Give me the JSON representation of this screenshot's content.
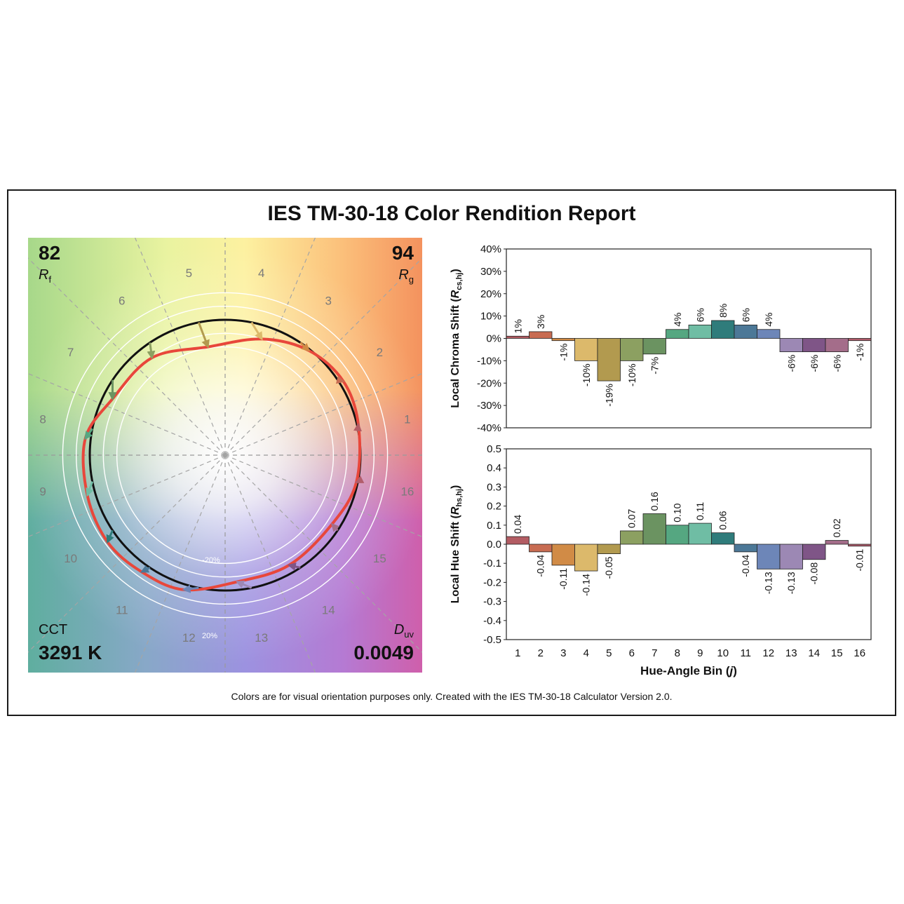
{
  "report": {
    "title": "IES TM-30-18 Color Rendition Report",
    "footer": "Colors are for visual orientation purposes only. Created with the IES TM-30-18 Calculator Version 2.0."
  },
  "metrics": {
    "rf_value": "82",
    "rf_symbol": "R",
    "rf_sub": "f",
    "rg_value": "94",
    "rg_symbol": "R",
    "rg_sub": "g",
    "cct_label": "CCT",
    "cct_value": "3291 K",
    "duv_symbol": "D",
    "duv_sub": "uv",
    "duv_value": "0.0049"
  },
  "vector_graphic": {
    "bin_labels": [
      "1",
      "2",
      "3",
      "4",
      "5",
      "6",
      "7",
      "8",
      "9",
      "10",
      "11",
      "12",
      "13",
      "14",
      "15",
      "16"
    ],
    "ring_label_inner": "-20%",
    "ring_label_outer": "20%",
    "bin_colors": [
      "#b35c63",
      "#c86c52",
      "#d18b46",
      "#dcb96b",
      "#b29a4f",
      "#8ca061",
      "#6b9361",
      "#55a781",
      "#6fbda4",
      "#2f7c7b",
      "#4c7897",
      "#6d86b8",
      "#9c88b4",
      "#7f5587",
      "#a46d8a",
      "#b25d6c"
    ],
    "reference_color": "#111111",
    "test_color": "#e8473b"
  },
  "chart_data": [
    {
      "type": "bar",
      "title": "",
      "xlabel": "",
      "ylabel": "Local Chroma Shift (R",
      "ylabel_sub": "cs,hj",
      "ylabel_end": ")",
      "categories": [
        "1",
        "2",
        "3",
        "4",
        "5",
        "6",
        "7",
        "8",
        "9",
        "10",
        "11",
        "12",
        "13",
        "14",
        "15",
        "16"
      ],
      "values": [
        0.01,
        0.03,
        -0.01,
        -0.1,
        -0.19,
        -0.1,
        -0.07,
        0.04,
        0.06,
        0.08,
        0.06,
        0.04,
        -0.06,
        -0.06,
        -0.06,
        -0.01
      ],
      "data_labels": [
        "1%",
        "3%",
        "-1%",
        "-10%",
        "-19%",
        "-10%",
        "-7%",
        "4%",
        "6%",
        "8%",
        "6%",
        "4%",
        "-6%",
        "-6%",
        "-6%",
        "-1%"
      ],
      "ylim": [
        -0.4,
        0.4
      ],
      "yticks": [
        0.4,
        0.3,
        0.2,
        0.1,
        0,
        -0.1,
        -0.2,
        -0.3,
        -0.4
      ],
      "ytick_labels": [
        "40%",
        "30%",
        "20%",
        "10%",
        "0%",
        "-10%",
        "-20%",
        "-30%",
        "-40%"
      ],
      "grid": false
    },
    {
      "type": "bar",
      "title": "",
      "xlabel": "Hue-Angle Bin (",
      "xlabel_italic": "j",
      "xlabel_end": ")",
      "ylabel": "Local Hue Shift (R",
      "ylabel_sub": "hs,hj",
      "ylabel_end": ")",
      "categories": [
        "1",
        "2",
        "3",
        "4",
        "5",
        "6",
        "7",
        "8",
        "9",
        "10",
        "11",
        "12",
        "13",
        "14",
        "15",
        "16"
      ],
      "values": [
        0.04,
        -0.04,
        -0.11,
        -0.14,
        -0.05,
        0.07,
        0.16,
        0.1,
        0.11,
        0.06,
        -0.04,
        -0.13,
        -0.13,
        -0.08,
        0.02,
        -0.01
      ],
      "data_labels": [
        "0.04",
        "-0.04",
        "-0.11",
        "-0.14",
        "-0.05",
        "0.07",
        "0.16",
        "0.10",
        "0.11",
        "0.06",
        "-0.04",
        "-0.13",
        "-0.13",
        "-0.08",
        "0.02",
        "-0.01"
      ],
      "ylim": [
        -0.5,
        0.5
      ],
      "yticks": [
        0.5,
        0.4,
        0.3,
        0.2,
        0.1,
        0,
        -0.1,
        -0.2,
        -0.3,
        -0.4,
        -0.5
      ],
      "ytick_labels": [
        "0.5",
        "0.4",
        "0.3",
        "0.2",
        "0.1",
        "0.0",
        "-0.1",
        "-0.2",
        "-0.3",
        "-0.4",
        "-0.5"
      ],
      "grid": false
    }
  ]
}
